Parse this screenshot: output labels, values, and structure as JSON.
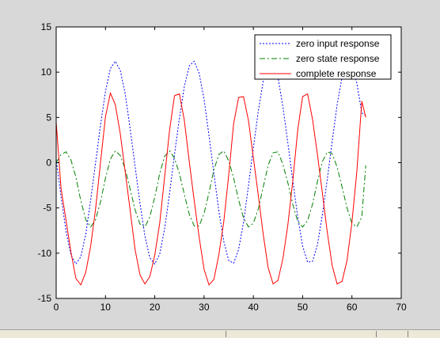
{
  "chart_data": {
    "type": "line",
    "title": "",
    "xlabel": "",
    "ylabel": "",
    "xlim": [
      0,
      70
    ],
    "ylim": [
      -15,
      15
    ],
    "xticks": [
      0,
      10,
      20,
      30,
      40,
      50,
      60,
      70
    ],
    "yticks": [
      -15,
      -10,
      -5,
      0,
      5,
      10,
      15
    ],
    "grid": false,
    "legend_position": "top-right",
    "series": [
      {
        "name": "zero input response",
        "color": "#0000ff",
        "style": "dotted",
        "x": [
          0,
          1.0,
          2.0,
          3.0,
          4.0,
          5.0,
          6.0,
          7.0,
          8.0,
          9.0,
          10.0,
          11.0,
          12.0,
          13.0,
          14.0,
          15.0,
          16.0,
          17.0,
          18.0,
          19.0,
          20.0,
          21.0,
          22.0,
          23.0,
          24.0,
          25.0,
          26.0,
          27.0,
          28.0,
          29.0,
          30.0,
          31.0,
          32.0,
          33.0,
          34.0,
          35.0,
          36.0,
          37.0,
          38.0,
          39.0,
          40.0,
          41.0,
          42.0,
          43.0,
          44.0,
          45.0,
          46.0,
          47.0,
          48.0,
          49.0,
          50.0,
          51.0,
          52.0,
          53.0,
          54.0,
          55.0,
          56.0,
          57.0,
          58.0,
          59.0,
          60.0,
          61.0,
          62.0,
          62.8
        ],
        "y": [
          0.4,
          -3.8,
          -7.6,
          -10.2,
          -11.2,
          -10.4,
          -7.9,
          -4.1,
          0.0,
          4.2,
          7.9,
          10.4,
          11.2,
          10.2,
          7.6,
          3.8,
          -0.4,
          -4.5,
          -8.1,
          -10.5,
          -11.2,
          -10.1,
          -7.3,
          -3.4,
          0.9,
          4.9,
          8.4,
          10.7,
          11.2,
          9.9,
          7.0,
          3.0,
          -1.2,
          -5.3,
          -8.7,
          -10.8,
          -11.1,
          -9.6,
          -6.6,
          -2.6,
          1.6,
          5.7,
          9.0,
          10.9,
          11.0,
          9.4,
          6.2,
          2.2,
          -2.0,
          -6.0,
          -9.2,
          -11.0,
          -10.9,
          -9.1,
          -5.8,
          -1.8,
          2.4,
          6.4,
          9.5,
          11.0,
          10.8,
          8.8,
          5.5,
          5.2
        ]
      },
      {
        "name": "zero state response",
        "color": "#008000",
        "style": "dashdot",
        "x": [
          0,
          1.0,
          2.0,
          3.0,
          4.0,
          5.0,
          6.0,
          7.0,
          8.0,
          9.0,
          10.0,
          11.0,
          12.0,
          13.0,
          14.0,
          15.0,
          16.0,
          17.0,
          18.0,
          19.0,
          20.0,
          21.0,
          22.0,
          23.0,
          24.0,
          25.0,
          26.0,
          27.0,
          28.0,
          29.0,
          30.0,
          31.0,
          32.0,
          33.0,
          34.0,
          35.0,
          36.0,
          37.0,
          38.0,
          39.0,
          40.0,
          41.0,
          42.0,
          43.0,
          44.0,
          45.0,
          46.0,
          47.0,
          48.0,
          49.0,
          50.0,
          51.0,
          52.0,
          53.0,
          54.0,
          55.0,
          56.0,
          57.0,
          58.0,
          59.0,
          60.0,
          61.0,
          62.0,
          62.8
        ],
        "y": [
          0.0,
          0.9,
          1.2,
          0.3,
          -1.6,
          -4.2,
          -6.3,
          -7.1,
          -6.3,
          -4.3,
          -1.7,
          0.4,
          1.3,
          0.8,
          -0.7,
          -2.9,
          -5.2,
          -6.8,
          -7.1,
          -6.0,
          -3.8,
          -1.2,
          0.7,
          1.3,
          0.5,
          -1.2,
          -3.5,
          -5.7,
          -7.0,
          -7.0,
          -5.6,
          -3.3,
          -0.8,
          0.9,
          1.3,
          0.2,
          -1.7,
          -4.1,
          -6.1,
          -7.1,
          -6.7,
          -5.1,
          -2.7,
          -0.3,
          1.1,
          1.2,
          -0.2,
          -2.2,
          -4.6,
          -6.5,
          -7.1,
          -6.4,
          -4.6,
          -2.1,
          0.1,
          1.2,
          1.0,
          -0.5,
          -2.7,
          -5.0,
          -6.7,
          -7.1,
          -6.0,
          -0.3
        ]
      },
      {
        "name": "complete response",
        "color": "#ff0000",
        "style": "solid",
        "x": [
          0,
          1.0,
          2.0,
          3.0,
          4.0,
          5.0,
          6.0,
          7.0,
          8.0,
          9.0,
          10.0,
          11.0,
          12.0,
          13.0,
          14.0,
          15.0,
          16.0,
          17.0,
          18.0,
          19.0,
          20.0,
          21.0,
          22.0,
          23.0,
          24.0,
          25.0,
          26.0,
          27.0,
          28.0,
          29.0,
          30.0,
          31.0,
          32.0,
          33.0,
          34.0,
          35.0,
          36.0,
          37.0,
          38.0,
          39.0,
          40.0,
          41.0,
          42.0,
          43.0,
          44.0,
          45.0,
          46.0,
          47.0,
          48.0,
          49.0,
          50.0,
          51.0,
          52.0,
          53.0,
          54.0,
          55.0,
          56.0,
          57.0,
          58.0,
          59.0,
          60.0,
          61.0,
          62.0,
          62.8
        ],
        "y": [
          4.5,
          -2.9,
          -6.4,
          -9.9,
          -12.8,
          -13.5,
          -12.1,
          -9.2,
          -5.1,
          0.1,
          5.1,
          7.7,
          6.4,
          3.2,
          -1.0,
          -5.2,
          -9.6,
          -12.4,
          -13.4,
          -12.6,
          -10.2,
          -6.7,
          -1.6,
          3.6,
          7.4,
          7.6,
          4.7,
          0.1,
          -4.2,
          -8.2,
          -11.8,
          -13.5,
          -12.9,
          -10.2,
          -6.5,
          -1.4,
          4.3,
          7.2,
          7.3,
          4.7,
          0.6,
          -3.6,
          -7.9,
          -11.6,
          -13.4,
          -13.0,
          -10.6,
          -6.9,
          -2.0,
          3.6,
          7.3,
          7.6,
          4.8,
          0.9,
          -3.3,
          -7.7,
          -11.4,
          -13.4,
          -13.1,
          -10.8,
          -6.6,
          -1.0,
          6.8,
          5.0
        ]
      }
    ]
  }
}
